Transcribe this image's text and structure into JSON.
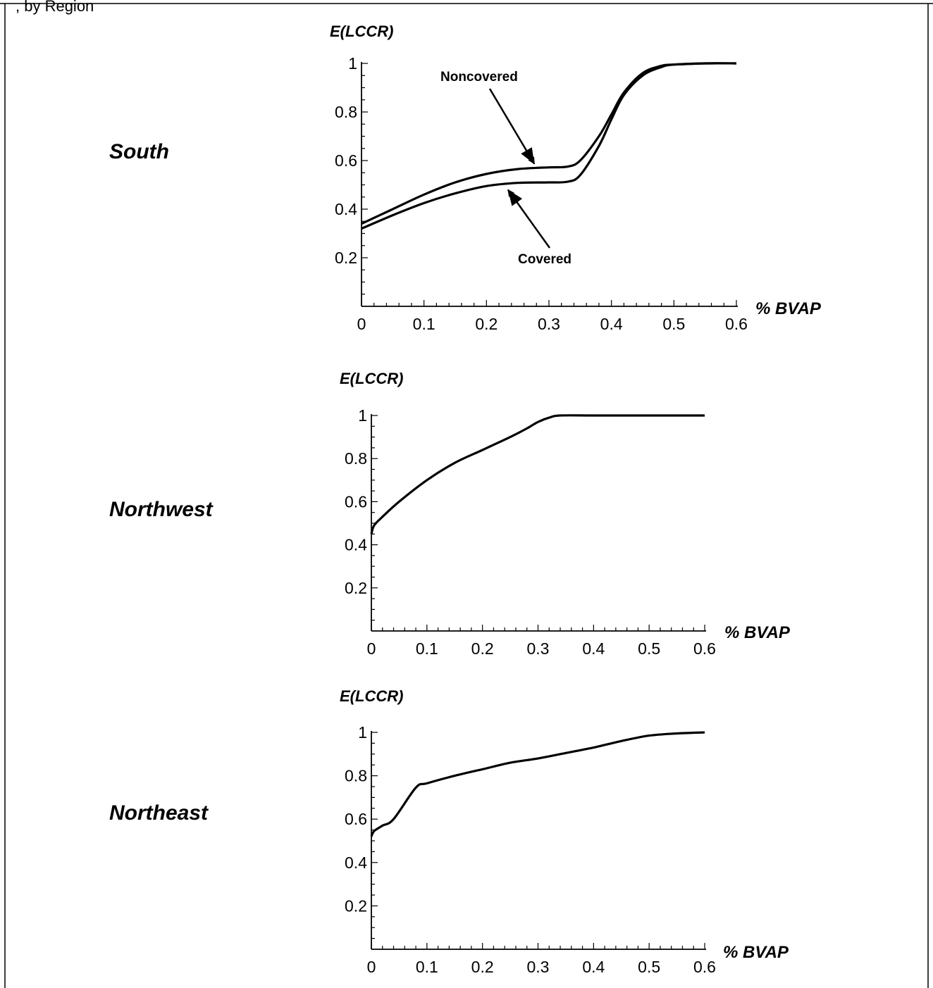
{
  "header": {
    "caption_fragment": ", by Region"
  },
  "chart_data": [
    {
      "type": "line",
      "region_label": "South",
      "ylabel": "E(LCCR)",
      "xlabel": "% BVAP",
      "xlim": [
        0,
        0.6
      ],
      "ylim": [
        0,
        1
      ],
      "xticks": [
        "0",
        "0.1",
        "0.2",
        "0.3",
        "0.4",
        "0.5",
        "0.6"
      ],
      "yticks": [
        "0.2",
        "0.4",
        "0.6",
        "0.8",
        "1"
      ],
      "series": [
        {
          "name": "Noncovered",
          "x": [
            0,
            0.05,
            0.1,
            0.15,
            0.2,
            0.25,
            0.3,
            0.33,
            0.35,
            0.38,
            0.4,
            0.42,
            0.45,
            0.48,
            0.5,
            0.55,
            0.6
          ],
          "y": [
            0.34,
            0.4,
            0.46,
            0.51,
            0.545,
            0.565,
            0.572,
            0.575,
            0.6,
            0.7,
            0.79,
            0.88,
            0.96,
            0.99,
            0.995,
            1.0,
            1.0
          ]
        },
        {
          "name": "Covered",
          "x": [
            0,
            0.05,
            0.1,
            0.15,
            0.2,
            0.25,
            0.3,
            0.33,
            0.35,
            0.38,
            0.4,
            0.42,
            0.45,
            0.48,
            0.5,
            0.55,
            0.6
          ],
          "y": [
            0.32,
            0.375,
            0.425,
            0.465,
            0.495,
            0.508,
            0.51,
            0.513,
            0.54,
            0.66,
            0.77,
            0.87,
            0.95,
            0.985,
            0.995,
            1.0,
            1.0
          ]
        }
      ],
      "annotations": [
        {
          "text": "Noncovered",
          "points_to": "Noncovered"
        },
        {
          "text": "Covered",
          "points_to": "Covered"
        }
      ]
    },
    {
      "type": "line",
      "region_label": "Northwest",
      "ylabel": "E(LCCR)",
      "xlabel": "% BVAP",
      "xlim": [
        0,
        0.6
      ],
      "ylim": [
        0,
        1
      ],
      "xticks": [
        "0",
        "0.1",
        "0.2",
        "0.3",
        "0.4",
        "0.5",
        "0.6"
      ],
      "yticks": [
        "0.2",
        "0.4",
        "0.6",
        "0.8",
        "1"
      ],
      "series": [
        {
          "x": [
            0,
            0.005,
            0.02,
            0.05,
            0.1,
            0.15,
            0.2,
            0.25,
            0.28,
            0.3,
            0.32,
            0.34,
            0.4,
            0.5,
            0.6
          ],
          "y": [
            0.45,
            0.49,
            0.53,
            0.6,
            0.7,
            0.78,
            0.84,
            0.9,
            0.94,
            0.97,
            0.99,
            1.0,
            1.0,
            1.0,
            1.0
          ]
        }
      ]
    },
    {
      "type": "line",
      "region_label": "Northeast",
      "ylabel": "E(LCCR)",
      "xlabel": "% BVAP",
      "xlim": [
        0,
        0.6
      ],
      "ylim": [
        0,
        1
      ],
      "xticks": [
        "0",
        "0.1",
        "0.2",
        "0.3",
        "0.4",
        "0.5",
        "0.6"
      ],
      "yticks": [
        "0.2",
        "0.4",
        "0.6",
        "0.8",
        "1"
      ],
      "series": [
        {
          "x": [
            0,
            0.005,
            0.02,
            0.04,
            0.08,
            0.1,
            0.15,
            0.2,
            0.25,
            0.3,
            0.35,
            0.4,
            0.45,
            0.5,
            0.55,
            0.6
          ],
          "y": [
            0.52,
            0.545,
            0.57,
            0.6,
            0.745,
            0.765,
            0.8,
            0.83,
            0.86,
            0.88,
            0.905,
            0.93,
            0.96,
            0.985,
            0.995,
            1.0
          ]
        }
      ]
    }
  ]
}
